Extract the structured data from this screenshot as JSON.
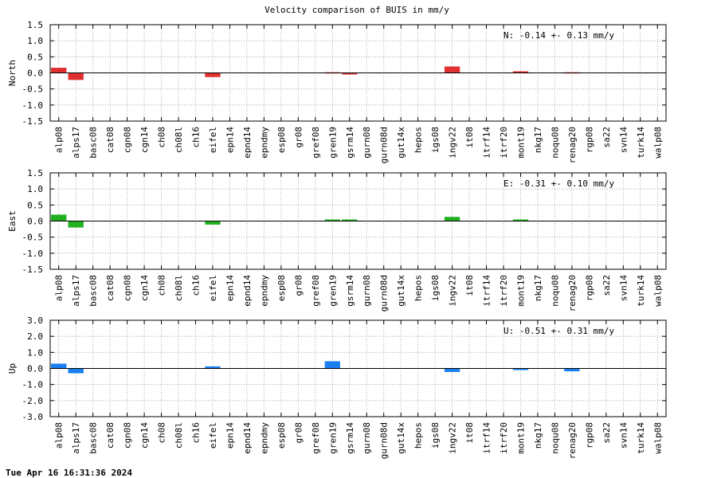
{
  "title": "Velocity comparison of BUIS in mm/y",
  "timestamp": "Tue Apr 16 16:31:36 2024",
  "chart_data": {
    "type": "bar",
    "title": "Velocity comparison of BUIS in mm/y",
    "categories": [
      "alp08",
      "alps17",
      "basc08",
      "cat08",
      "cgn08",
      "cgn14",
      "ch08",
      "ch08l",
      "ch16",
      "eifel",
      "epn14",
      "epnd14",
      "epndmy",
      "esp08",
      "gr08",
      "gref08",
      "gren19",
      "gsrm14",
      "gurn08",
      "gurn08d",
      "gut14x",
      "hepos",
      "igs08",
      "ingv22",
      "it08",
      "itrf14",
      "itrf20",
      "mont19",
      "nkg17",
      "noqu08",
      "renag20",
      "rgp08",
      "sa22",
      "svn14",
      "turk14",
      "walp08"
    ],
    "grid": true,
    "panels": [
      {
        "ylabel": "North",
        "ylim": [
          -1.5,
          1.5
        ],
        "yticks": [
          "1.5",
          "1.0",
          "0.5",
          "0.0",
          "-0.5",
          "-1.0",
          "-1.5"
        ],
        "stat": "N:  -0.14 +-  0.13 mm/y",
        "color": "#e03030",
        "values": [
          0.16,
          -0.22,
          null,
          null,
          null,
          null,
          null,
          null,
          null,
          -0.13,
          null,
          null,
          null,
          null,
          null,
          null,
          0.02,
          -0.05,
          null,
          null,
          null,
          null,
          null,
          0.2,
          null,
          null,
          null,
          0.05,
          null,
          null,
          0.02,
          null,
          null,
          null,
          null,
          null
        ]
      },
      {
        "ylabel": "East",
        "ylim": [
          -1.5,
          1.5
        ],
        "yticks": [
          "1.5",
          "1.0",
          "0.5",
          "0.0",
          "-0.5",
          "-1.0",
          "-1.5"
        ],
        "stat": "E:  -0.31 +-  0.10 mm/y",
        "color": "#20b020",
        "values": [
          0.2,
          -0.2,
          null,
          null,
          null,
          null,
          null,
          null,
          null,
          -0.11,
          null,
          null,
          null,
          null,
          null,
          null,
          0.05,
          0.05,
          null,
          null,
          null,
          null,
          null,
          0.13,
          null,
          null,
          null,
          0.05,
          null,
          null,
          null,
          null,
          null,
          null,
          null,
          null
        ]
      },
      {
        "ylabel": "Up",
        "ylim": [
          -3.0,
          3.0
        ],
        "yticks": [
          "3.0",
          "2.0",
          "1.0",
          "0.0",
          "-1.0",
          "-2.0",
          "-3.0"
        ],
        "stat": "U:  -0.51 +-  0.31 mm/y",
        "color": "#1a80f0",
        "values": [
          0.3,
          -0.3,
          null,
          null,
          null,
          null,
          null,
          null,
          null,
          0.13,
          null,
          null,
          null,
          null,
          null,
          null,
          0.45,
          null,
          null,
          null,
          null,
          null,
          null,
          -0.22,
          null,
          null,
          null,
          -0.1,
          null,
          null,
          -0.18,
          null,
          null,
          null,
          null,
          null
        ]
      }
    ]
  }
}
